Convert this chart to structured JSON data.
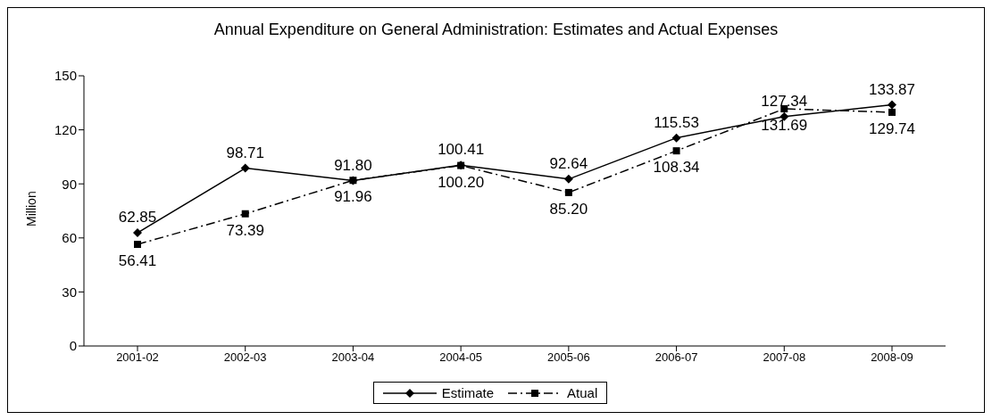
{
  "chart_data": {
    "type": "line",
    "title": "Annual Expenditure on General Administration: Estimates and Actual Expenses",
    "ylabel": "Million",
    "categories": [
      "2001-02",
      "2002-03",
      "2003-04",
      "2004-05",
      "2005-06",
      "2006-07",
      "2007-08",
      "2008-09"
    ],
    "series": [
      {
        "name": "Estimate",
        "color": "#000000",
        "marker": "diamond",
        "line_style": "solid",
        "values": [
          62.85,
          98.71,
          91.8,
          100.41,
          92.64,
          115.53,
          127.34,
          133.87
        ],
        "value_labels": [
          "62.85",
          "98.71",
          "91.80",
          "100.41",
          "92.64",
          "115.53",
          "127.34",
          "133.87"
        ]
      },
      {
        "name": "Atual",
        "color": "#000000",
        "marker": "square",
        "line_style": "dashed",
        "values": [
          56.41,
          73.39,
          91.96,
          100.2,
          85.2,
          108.34,
          131.69,
          129.74
        ],
        "value_labels": [
          "56.41",
          "73.39",
          "91.96",
          "100.20",
          "85.20",
          "108.34",
          "131.69",
          "129.74"
        ]
      }
    ],
    "ylim": [
      0,
      150
    ],
    "yticks": [
      0,
      30,
      60,
      90,
      120,
      150
    ],
    "grid": false,
    "legend": "bottom"
  }
}
